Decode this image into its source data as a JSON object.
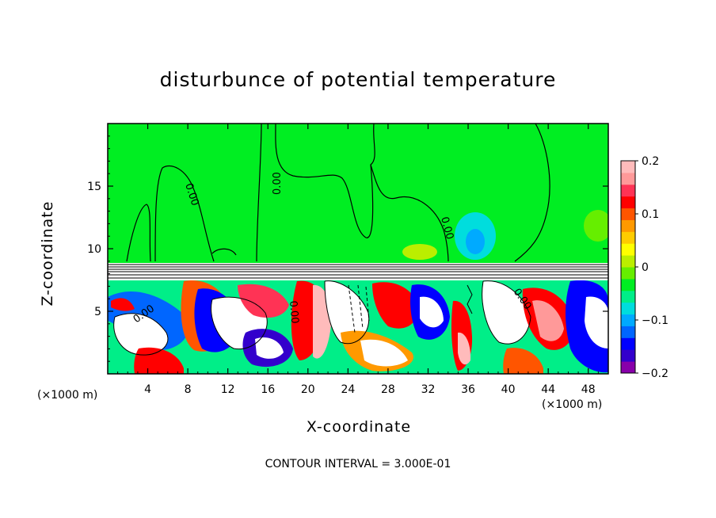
{
  "title": "disturbunce of potential temperature",
  "x_axis_label": "X-coordinate",
  "y_axis_label": "Z-coordinate",
  "x_unit_left": "(×1000 m)",
  "x_unit_right": "(×1000 m)",
  "contour_note": "CONTOUR INTERVAL = 3.000E-01",
  "contour_labels": [
    "0.00",
    "0.00",
    "0.00",
    "0.00",
    "0.00",
    "0.00"
  ],
  "colors": {
    "upper_field": "#00ee22",
    "contour_line": "#000000"
  },
  "colorbar": {
    "ticks": [
      0.2,
      0.1,
      0,
      -0.1,
      -0.2
    ],
    "tick_labels": [
      "0.2",
      "0.1",
      "0",
      "-0.1",
      "-0.2"
    ],
    "min": -0.2,
    "max": 0.2,
    "colors": [
      "#8800aa",
      "#3300cc",
      "#0000ff",
      "#0066ff",
      "#00aaff",
      "#00dddd",
      "#00ee88",
      "#00ee22",
      "#66ee00",
      "#bbee00",
      "#ffff00",
      "#ffcc00",
      "#ff9900",
      "#ff5500",
      "#ff0000",
      "#ff3355",
      "#ff9999",
      "#ffbbbb"
    ]
  },
  "chart_data": {
    "type": "heatmap",
    "title": "disturbunce of potential temperature",
    "xlabel": "X-coordinate",
    "ylabel": "Z-coordinate",
    "x_unit": "(×1000 m)",
    "xlim": [
      0,
      50
    ],
    "ylim": [
      0,
      20
    ],
    "xticks": [
      4,
      8,
      12,
      16,
      20,
      24,
      28,
      32,
      36,
      40,
      44,
      48
    ],
    "yticks": [
      5,
      10,
      15
    ],
    "colorbar_range": [
      -0.2,
      0.2
    ],
    "contour_interval": "3.000E-01",
    "contour_level_label": "0.00",
    "regions": [
      {
        "z_range": [
          9,
          20
        ],
        "value": 0.0
      },
      {
        "z_range": [
          0,
          8
        ],
        "value_range": [
          -0.2,
          0.2
        ]
      }
    ]
  }
}
